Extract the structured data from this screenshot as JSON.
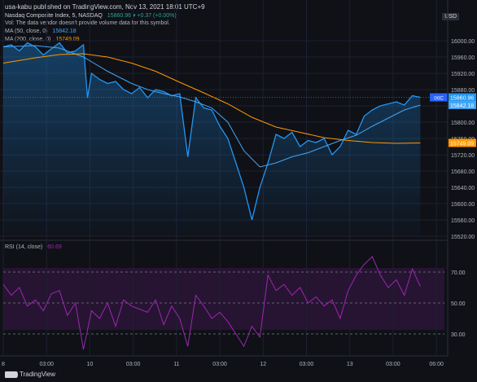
{
  "header": {
    "published": "usa-kabu published on TradingView.com, Nov 13, 2021 18:01 UTC+9",
    "symbol_line": "Nasdaq Composite Index, 5, NASDAQ",
    "price_change": "15860.96 ▾ +0.37 (+0.00%)",
    "vol_note": "Vol: The data vendor doesn't provide volume data for this symbol.",
    "ma50_label": "MA (50, close, 0)",
    "ma50_value": "15842.18",
    "ma200_label": "MA (200, close, 0)",
    "ma200_value": "15749.09",
    "currency": "USD",
    "rsi_label": "RSI (14, close)",
    "rsi_value": "60.69"
  },
  "footer": {
    "brand": "TradingView"
  },
  "colors": {
    "price": "#2196f3",
    "ma50": "#42a5f5",
    "ma200": "#ff9800",
    "rsi": "#9c27b0",
    "rsi_band": "#2a1535",
    "symbol_badge": "#2962ff"
  },
  "chart_data": [
    {
      "type": "line",
      "series": [
        {
          "name": "Nasdaq Composite Index",
          "x": [
            0,
            2,
            4,
            6,
            8,
            10,
            12,
            14,
            16,
            18,
            20,
            21,
            22,
            24,
            26,
            28,
            30,
            32,
            34,
            36,
            38,
            40,
            42,
            44,
            46,
            48,
            50,
            52,
            54,
            56,
            58,
            60,
            62,
            64,
            66,
            68,
            70,
            72,
            74,
            76,
            78,
            80,
            82,
            84,
            86,
            88,
            90,
            92,
            94,
            96,
            98,
            100,
            102,
            104
          ],
          "values": [
            15985,
            15990,
            15975,
            15995,
            15985,
            15965,
            15980,
            15995,
            15970,
            15975,
            15990,
            15860,
            15920,
            15905,
            15895,
            15900,
            15880,
            15870,
            15885,
            15860,
            15880,
            15875,
            15865,
            15870,
            15715,
            15860,
            15835,
            15830,
            15790,
            15760,
            15700,
            15640,
            15560,
            15640,
            15700,
            15770,
            15760,
            15775,
            15740,
            15755,
            15750,
            15760,
            15720,
            15740,
            15780,
            15770,
            15815,
            15830,
            15840,
            15845,
            15850,
            15842,
            15865,
            15861
          ]
        },
        {
          "name": "MA (50, close, 0)",
          "x": [
            0,
            8,
            14,
            20,
            26,
            32,
            36,
            40,
            44,
            48,
            52,
            56,
            60,
            64,
            68,
            72,
            76,
            80,
            84,
            88,
            92,
            96,
            100,
            104
          ],
          "values": [
            15985,
            15988,
            15982,
            15960,
            15925,
            15895,
            15880,
            15870,
            15862,
            15850,
            15835,
            15800,
            15730,
            15690,
            15700,
            15715,
            15725,
            15740,
            15755,
            15768,
            15790,
            15810,
            15830,
            15842
          ]
        },
        {
          "name": "MA (200, close, 0)",
          "x": [
            0,
            8,
            14,
            20,
            26,
            32,
            38,
            44,
            50,
            56,
            62,
            68,
            74,
            80,
            86,
            92,
            98,
            104
          ],
          "values": [
            15945,
            15958,
            15966,
            15968,
            15960,
            15945,
            15925,
            15898,
            15872,
            15845,
            15812,
            15788,
            15775,
            15762,
            15755,
            15750,
            15748,
            15749
          ]
        }
      ],
      "ylim": [
        15520,
        16040
      ],
      "y_ticks": [
        "16000.00",
        "15960.00",
        "15920.00",
        "15880.00",
        "15840.00",
        "15800.00",
        "15760.00",
        "15720.00",
        "15680.00",
        "15640.00",
        "15600.00",
        "15560.00",
        "15520.00"
      ],
      "price_marker": "15860.96",
      "symbol_badge": "IXIC",
      "right_marks": [
        "15842.18",
        "15749.09"
      ]
    },
    {
      "type": "line",
      "series": [
        {
          "name": "RSI (14, close)",
          "x": [
            0,
            2,
            4,
            6,
            8,
            10,
            12,
            14,
            16,
            18,
            20,
            22,
            24,
            26,
            28,
            30,
            32,
            34,
            36,
            38,
            40,
            42,
            44,
            46,
            48,
            50,
            52,
            54,
            56,
            58,
            60,
            62,
            64,
            66,
            68,
            70,
            72,
            74,
            76,
            78,
            80,
            82,
            84,
            86,
            88,
            90,
            92,
            94,
            96,
            98,
            100,
            102,
            104
          ],
          "values": [
            62,
            55,
            60,
            48,
            52,
            45,
            56,
            58,
            42,
            50,
            20,
            45,
            40,
            50,
            35,
            52,
            48,
            46,
            44,
            52,
            36,
            48,
            40,
            22,
            55,
            48,
            40,
            44,
            38,
            30,
            22,
            35,
            28,
            68,
            58,
            62,
            55,
            60,
            50,
            54,
            48,
            52,
            40,
            58,
            68,
            75,
            80,
            68,
            60,
            65,
            55,
            72,
            60.69
          ]
        }
      ],
      "ylim": [
        20,
        80
      ],
      "y_ticks": [
        "70.00",
        "50.00",
        "30.00"
      ],
      "bands": [
        30,
        70
      ]
    }
  ],
  "x_axis": [
    "8",
    "03:00",
    "10",
    "03:00",
    "11",
    "03:00",
    "12",
    "03:00",
    "13",
    "03:00",
    "06:00"
  ]
}
